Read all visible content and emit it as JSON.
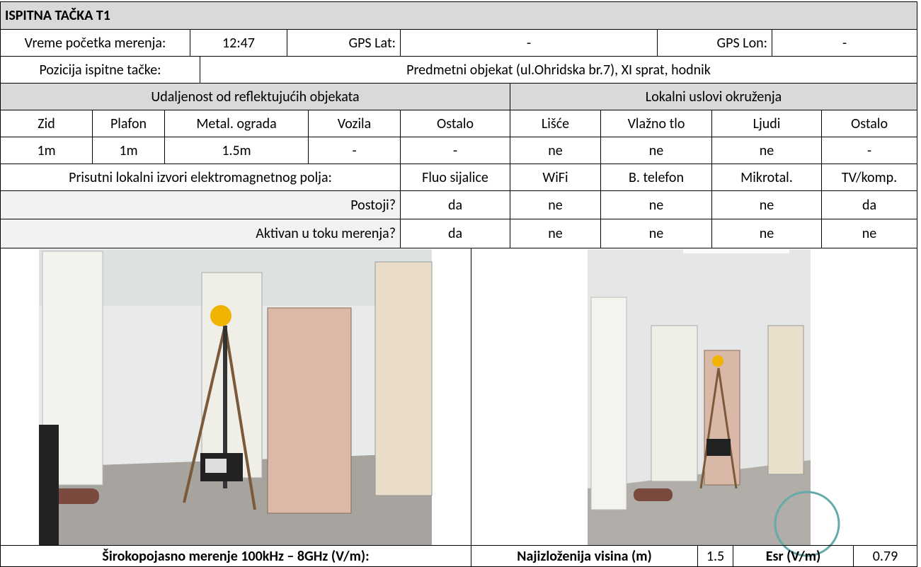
{
  "title": "ISPITNA TAČKA T1",
  "start_time": {
    "label": "Vreme početka merenja:",
    "value": "12:47"
  },
  "gps_lat": {
    "label": "GPS Lat:",
    "value": "-"
  },
  "gps_lon": {
    "label": "GPS Lon:",
    "value": "-"
  },
  "position": {
    "label": "Pozicija ispitne tačke:",
    "value": "Predmetni objekat  (ul.Ohridska br.7), XI sprat, hodnik"
  },
  "reflective": {
    "title": "Udaljenost od reflektujućih objekata",
    "headers": [
      "Zid",
      "Plafon",
      "Metal. ograda",
      "Vozila",
      "Ostalo"
    ],
    "values": [
      "1m",
      "1m",
      "1.5m",
      "-",
      "-"
    ]
  },
  "environment": {
    "title": "Lokalni uslovi okruženja",
    "headers": [
      "Lišće",
      "Vlažno tlo",
      "Ljudi",
      "Ostalo"
    ],
    "values": [
      "ne",
      "ne",
      "ne",
      "-"
    ]
  },
  "sources": {
    "title": "Prisutni lokalni izvori elektromagnetnog polja:",
    "headers": [
      "Fluo sijalice",
      "WiFi",
      "B. telefon",
      "Mikrotal.",
      "TV/komp."
    ],
    "rows": [
      {
        "label": "Postoji?",
        "values": [
          "da",
          "ne",
          "ne",
          "ne",
          "da"
        ]
      },
      {
        "label": "Aktivan u toku merenja?",
        "values": [
          "da",
          "ne",
          "ne",
          "ne",
          "ne"
        ]
      }
    ]
  },
  "footer": {
    "broadband": "Širokopojasno merenje 100kHz – 8GHz (V/m):",
    "height_label": "Najizloženija visina (m)",
    "height": 1.5,
    "esr_label": "Esr (V/m)",
    "esr": 0.79
  }
}
